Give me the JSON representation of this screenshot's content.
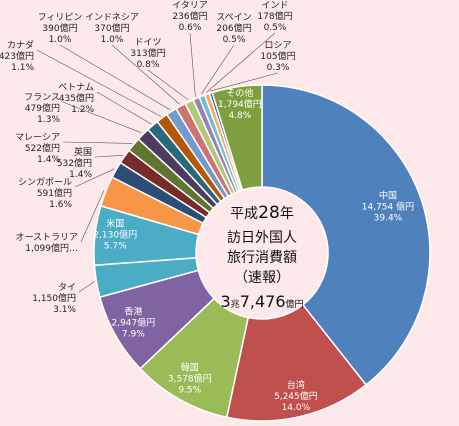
{
  "chart_data": {
    "type": "pie",
    "donut": true,
    "center": {
      "line1_prefix": "平成",
      "line1_num": "28",
      "line1_suffix": "年",
      "line2": "訪日外国人",
      "line3": "旅行消費額",
      "line4": "（速報）",
      "total_a": "3",
      "total_b": "兆",
      "total_c": "7,476",
      "total_d": "億円"
    },
    "slices": [
      {
        "name": "中国",
        "amount": "14,754 億円",
        "percent": "39.4%",
        "value": 14754,
        "color": "#4f81bd"
      },
      {
        "name": "台湾",
        "amount": "5,245億円",
        "percent": "14.0%",
        "value": 5245,
        "color": "#c0504d"
      },
      {
        "name": "韓国",
        "amount": "3,578億円",
        "percent": "9.5%",
        "value": 3578,
        "color": "#9bbb59"
      },
      {
        "name": "香港",
        "amount": "2,947億円",
        "percent": "7.9%",
        "value": 2947,
        "color": "#8064a2"
      },
      {
        "name": "タイ",
        "amount": "1,150億円",
        "percent": "3.1%",
        "value": 1150,
        "color": "#4bacc6"
      },
      {
        "name": "米国",
        "amount": "2,130億円",
        "percent": "5.7%",
        "value": 2130,
        "color": "#4bacc6"
      },
      {
        "name": "オーストラリア",
        "amount": "1,099億円…",
        "percent": "",
        "value": 1099,
        "color": "#f79646"
      },
      {
        "name": "シンガポール",
        "amount": "591億円",
        "percent": "1.6%",
        "value": 591,
        "color": "#2c4d75"
      },
      {
        "name": "英国",
        "amount": "532億円",
        "percent": "1.4%",
        "value": 532,
        "color": "#772c2a"
      },
      {
        "name": "マレーシア",
        "amount": "522億円",
        "percent": "1.4%",
        "value": 522,
        "color": "#5f7530"
      },
      {
        "name": "フランス",
        "amount": "479億円",
        "percent": "1.3%",
        "value": 479,
        "color": "#4d3b62"
      },
      {
        "name": "ベトナム",
        "amount": "435億円",
        "percent": "1.2%",
        "value": 435,
        "color": "#276a7c"
      },
      {
        "name": "カナダ",
        "amount": "423億円",
        "percent": "1.1%",
        "value": 423,
        "color": "#b65708"
      },
      {
        "name": "フィリピン",
        "amount": "390億円",
        "percent": "1.0%",
        "value": 390,
        "color": "#729aca"
      },
      {
        "name": "インドネシア",
        "amount": "370億円",
        "percent": "1.0%",
        "value": 370,
        "color": "#cd7371"
      },
      {
        "name": "ドイツ",
        "amount": "313億円",
        "percent": "0.8%",
        "value": 313,
        "color": "#afc97a"
      },
      {
        "name": "イタリア",
        "amount": "236億円",
        "percent": "0.6%",
        "value": 236,
        "color": "#9983b5"
      },
      {
        "name": "スペイン",
        "amount": "206億円",
        "percent": "0.5%",
        "value": 206,
        "color": "#6fbdd1"
      },
      {
        "name": "インド",
        "amount": "178億円",
        "percent": "0.5%",
        "value": 178,
        "color": "#f9ab6b"
      },
      {
        "name": "ロシア",
        "amount": "105億円",
        "percent": "0.3%",
        "value": 105,
        "color": "#3a6597"
      },
      {
        "name": "その他",
        "amount": "1,794億円",
        "percent": "4.8%",
        "value": 1794,
        "color": "#7f9f3e"
      }
    ]
  }
}
